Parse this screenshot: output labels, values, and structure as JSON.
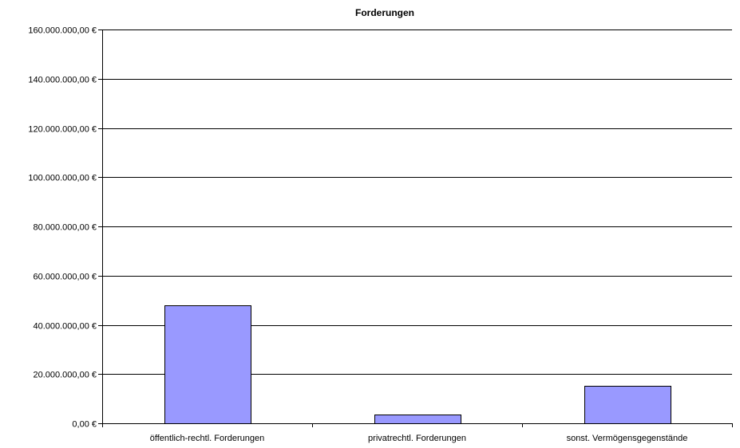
{
  "chart_data": {
    "type": "bar",
    "title": "Forderungen",
    "xlabel": "",
    "ylabel": "",
    "categories": [
      "öffentlich-rechtl. Forderungen",
      "privatrechtl. Forderungen",
      "sonst. Vermögensgegenstände"
    ],
    "values": [
      47800000,
      3500000,
      15100000
    ],
    "ylim": [
      0,
      160000000
    ],
    "yticks": [
      0,
      20000000,
      40000000,
      60000000,
      80000000,
      100000000,
      120000000,
      140000000,
      160000000
    ],
    "ytick_labels": [
      "0,00 €",
      "20.000.000,00 €",
      "40.000.000,00 €",
      "60.000.000,00 €",
      "80.000.000,00 €",
      "100.000.000,00 €",
      "120.000.000,00 €",
      "140.000.000,00 €",
      "160.000.000,00 €"
    ],
    "grid": true,
    "legend": "none",
    "colors": {
      "bar_fill": "#9999ff",
      "bar_stroke": "#000000",
      "grid": "#000000"
    }
  }
}
